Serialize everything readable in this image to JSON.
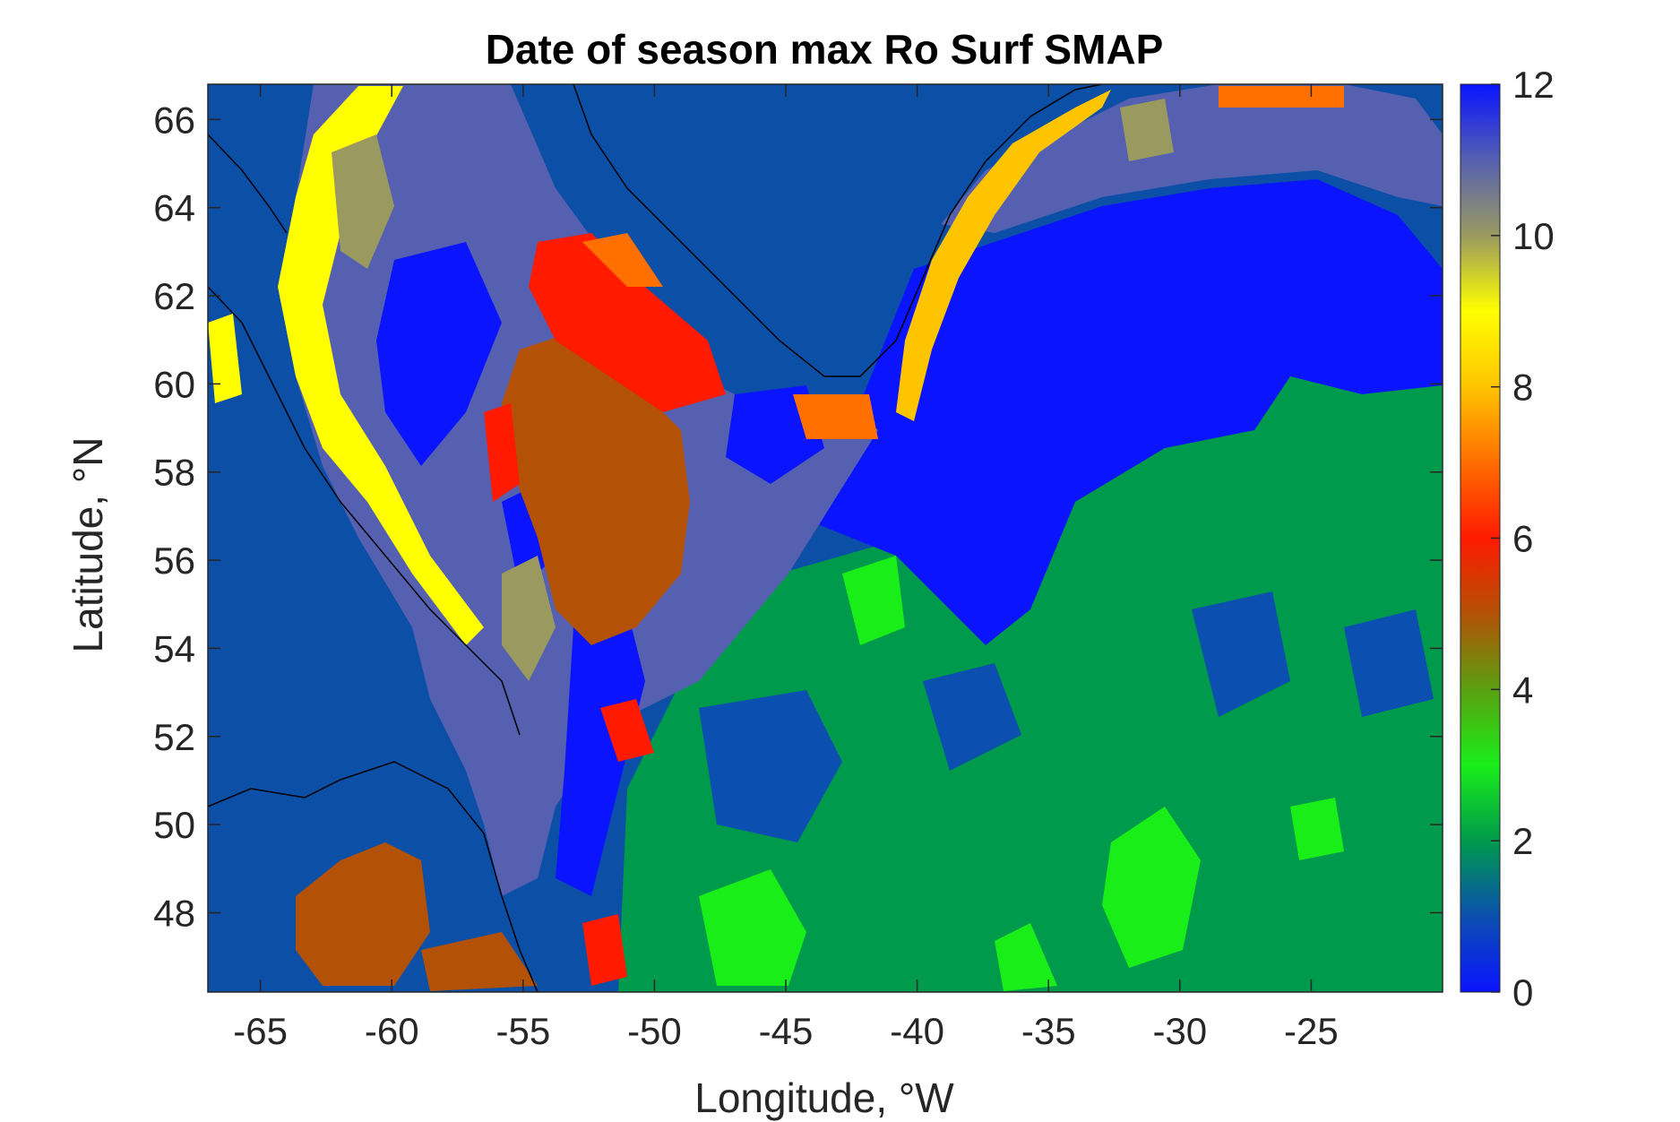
{
  "title": "Date of season max Ro Surf SMAP",
  "xlabel": "Longitude, °W",
  "ylabel": "Latitude, °N",
  "x_ticks": [
    "-65",
    "-60",
    "-55",
    "-50",
    "-45",
    "-40",
    "-35",
    "-30",
    "-25"
  ],
  "y_ticks": [
    "66",
    "64",
    "62",
    "60",
    "58",
    "56",
    "54",
    "52",
    "50",
    "48"
  ],
  "colorbar": {
    "ticks": [
      "0",
      "2",
      "4",
      "6",
      "8",
      "10",
      "12"
    ],
    "range": [
      0,
      12
    ],
    "stops": [
      {
        "v": 0,
        "c": "#0a14ff"
      },
      {
        "v": 1,
        "c": "#0b4fb0"
      },
      {
        "v": 2,
        "c": "#009a4c"
      },
      {
        "v": 3,
        "c": "#19ee19"
      },
      {
        "v": 4,
        "c": "#5aa010"
      },
      {
        "v": 5,
        "c": "#b35206"
      },
      {
        "v": 6,
        "c": "#ff1a00"
      },
      {
        "v": 7,
        "c": "#ff6d00"
      },
      {
        "v": 8,
        "c": "#ffc400"
      },
      {
        "v": 9,
        "c": "#ffff00"
      },
      {
        "v": 10,
        "c": "#9a9a60"
      },
      {
        "v": 11,
        "c": "#5560b0"
      },
      {
        "v": 12,
        "c": "#0a14ff"
      }
    ]
  },
  "colors": {
    "land": "#0b4fa6",
    "coastline": "#000000",
    "month_values": {
      "blue_dec": "#0a14ff",
      "dark_blue_jan": "#0b4fb0",
      "green_feb": "#009a4c",
      "lime_mar": "#19ee19",
      "olive_apr": "#5aa010",
      "brown_may": "#b35206",
      "red_jun": "#ff1a00",
      "orange_jul": "#ff7000",
      "yellow_sep": "#ffff00",
      "khaki_oct": "#9a9a60",
      "slate_nov": "#5560b0"
    }
  },
  "chart_data": {
    "type": "heatmap",
    "title": "Date of season max Ro Surf SMAP",
    "xlabel": "Longitude, °W",
    "ylabel": "Latitude, °N",
    "xlim": [
      -67,
      -20
    ],
    "ylim": [
      46.2,
      66.8
    ],
    "zlim": [
      0,
      12
    ],
    "regions": [
      {
        "name": "background",
        "value": 12
      },
      {
        "name": "labrador_sea_interior",
        "value": 11
      },
      {
        "name": "labrador_shelf_edge",
        "value": 9
      },
      {
        "name": "labrador_inner_shelf",
        "value": 10
      },
      {
        "name": "west_greenland_current",
        "value": 6
      },
      {
        "name": "central_labrador_sea",
        "value": 5
      },
      {
        "name": "east_north_atlantic",
        "value": 2
      },
      {
        "name": "mid_atlantic_patches",
        "value": 3
      }
    ]
  }
}
